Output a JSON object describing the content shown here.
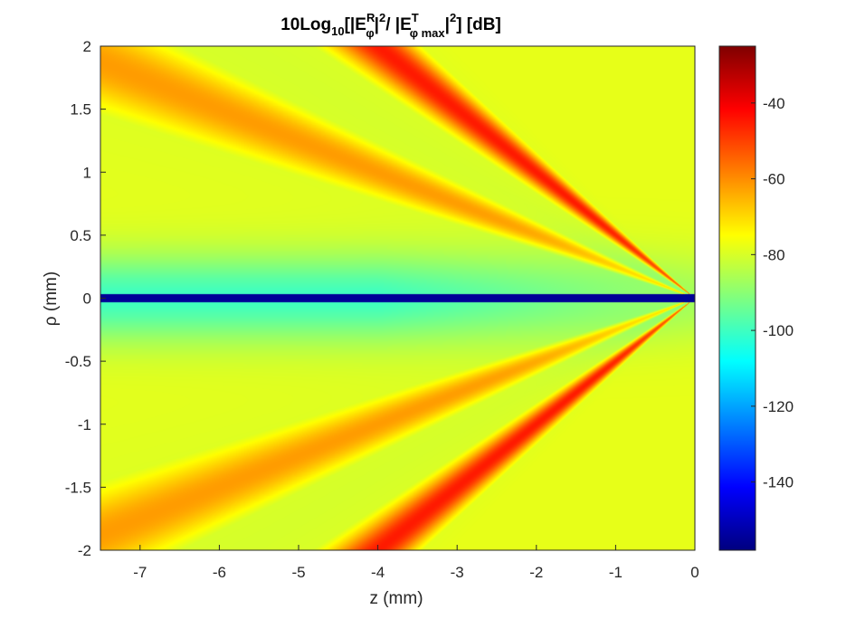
{
  "chart_data": {
    "type": "heatmap",
    "title_parts": {
      "prefix": "10Log",
      "log_base": "10",
      "open": "[|E",
      "sup_r": "R",
      "sub_phi": "φ",
      "mid": "|",
      "sup_2a": "2",
      "slash": "/ |E",
      "sup_t": "T",
      "sub_phimax": "φ max",
      "end": "|",
      "sup_2b": "2",
      "close": "] [dB]"
    },
    "xlabel": "z (mm)",
    "ylabel": "ρ (mm)",
    "xlim": [
      -7.5,
      0
    ],
    "ylim": [
      -2,
      2
    ],
    "xticks": [
      "-7",
      "-6",
      "-5",
      "-4",
      "-3",
      "-2",
      "-1",
      "0"
    ],
    "yticks": [
      "2",
      "1.5",
      "1",
      "0.5",
      "0",
      "-0.5",
      "-1",
      "-1.5",
      "-2"
    ],
    "colorbar": {
      "range": [
        -158,
        -25
      ],
      "ticks": [
        "-40",
        "-60",
        "-80",
        "-100",
        "-120",
        "-140"
      ],
      "colormap": "jet"
    },
    "features": [
      {
        "name": "inner lobe",
        "slope_rho_per_z": -0.5,
        "peak_db": -45
      },
      {
        "name": "outer lobe",
        "slope_rho_per_z": -0.25,
        "peak_db": -62
      },
      {
        "name": "axis null",
        "rho": 0,
        "min_db": -155
      }
    ]
  }
}
